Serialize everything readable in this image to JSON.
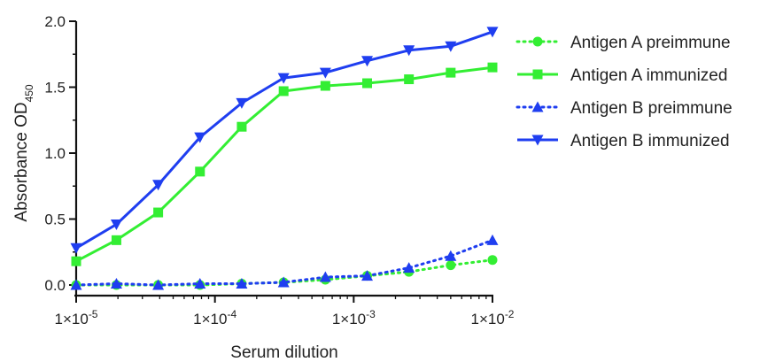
{
  "chart_data": {
    "type": "line",
    "xlabel": "Serum dilution",
    "ylabel": "Absorbance OD",
    "ylabel_sub": "450",
    "x_scale": "log",
    "xlim": [
      1e-05,
      0.01
    ],
    "ylim": [
      0,
      2.0
    ],
    "x_ticks": [
      {
        "value": 1e-05,
        "base": "1×10",
        "exp": "-5"
      },
      {
        "value": 0.0001,
        "base": "1×10",
        "exp": "-4"
      },
      {
        "value": 0.001,
        "base": "1×10",
        "exp": "-3"
      },
      {
        "value": 0.01,
        "base": "1×10",
        "exp": "-2"
      }
    ],
    "y_ticks": [
      {
        "value": 0.0,
        "label": "0.0"
      },
      {
        "value": 0.5,
        "label": "0.5"
      },
      {
        "value": 1.0,
        "label": "1.0"
      },
      {
        "value": 1.5,
        "label": "1.5"
      },
      {
        "value": 2.0,
        "label": "2.0"
      }
    ],
    "legend_position": "right",
    "x": [
      1e-05,
      1.95e-05,
      3.9e-05,
      7.8e-05,
      0.000156,
      0.0003125,
      0.000625,
      0.00125,
      0.0025,
      0.005,
      0.01
    ],
    "series": [
      {
        "name": "Antigen A preimmune",
        "color": "#33ee33",
        "marker": "circle",
        "dash": "dotted",
        "values": [
          0.0,
          0.0,
          0.0,
          0.0,
          0.01,
          0.02,
          0.04,
          0.07,
          0.1,
          0.15,
          0.19
        ]
      },
      {
        "name": "Antigen A immunized",
        "color": "#33ee33",
        "marker": "square",
        "dash": "solid",
        "values": [
          0.18,
          0.34,
          0.55,
          0.86,
          1.2,
          1.47,
          1.51,
          1.53,
          1.56,
          1.61,
          1.65
        ]
      },
      {
        "name": "Antigen B preimmune",
        "color": "#1f3ef0",
        "marker": "triangle-up",
        "dash": "dotted",
        "values": [
          0.0,
          0.01,
          0.0,
          0.01,
          0.01,
          0.02,
          0.06,
          0.07,
          0.13,
          0.22,
          0.34
        ]
      },
      {
        "name": "Antigen B immunized",
        "color": "#1f3ef0",
        "marker": "triangle-down",
        "dash": "solid",
        "values": [
          0.28,
          0.46,
          0.76,
          1.12,
          1.38,
          1.57,
          1.61,
          1.7,
          1.78,
          1.81,
          1.92
        ]
      }
    ]
  }
}
